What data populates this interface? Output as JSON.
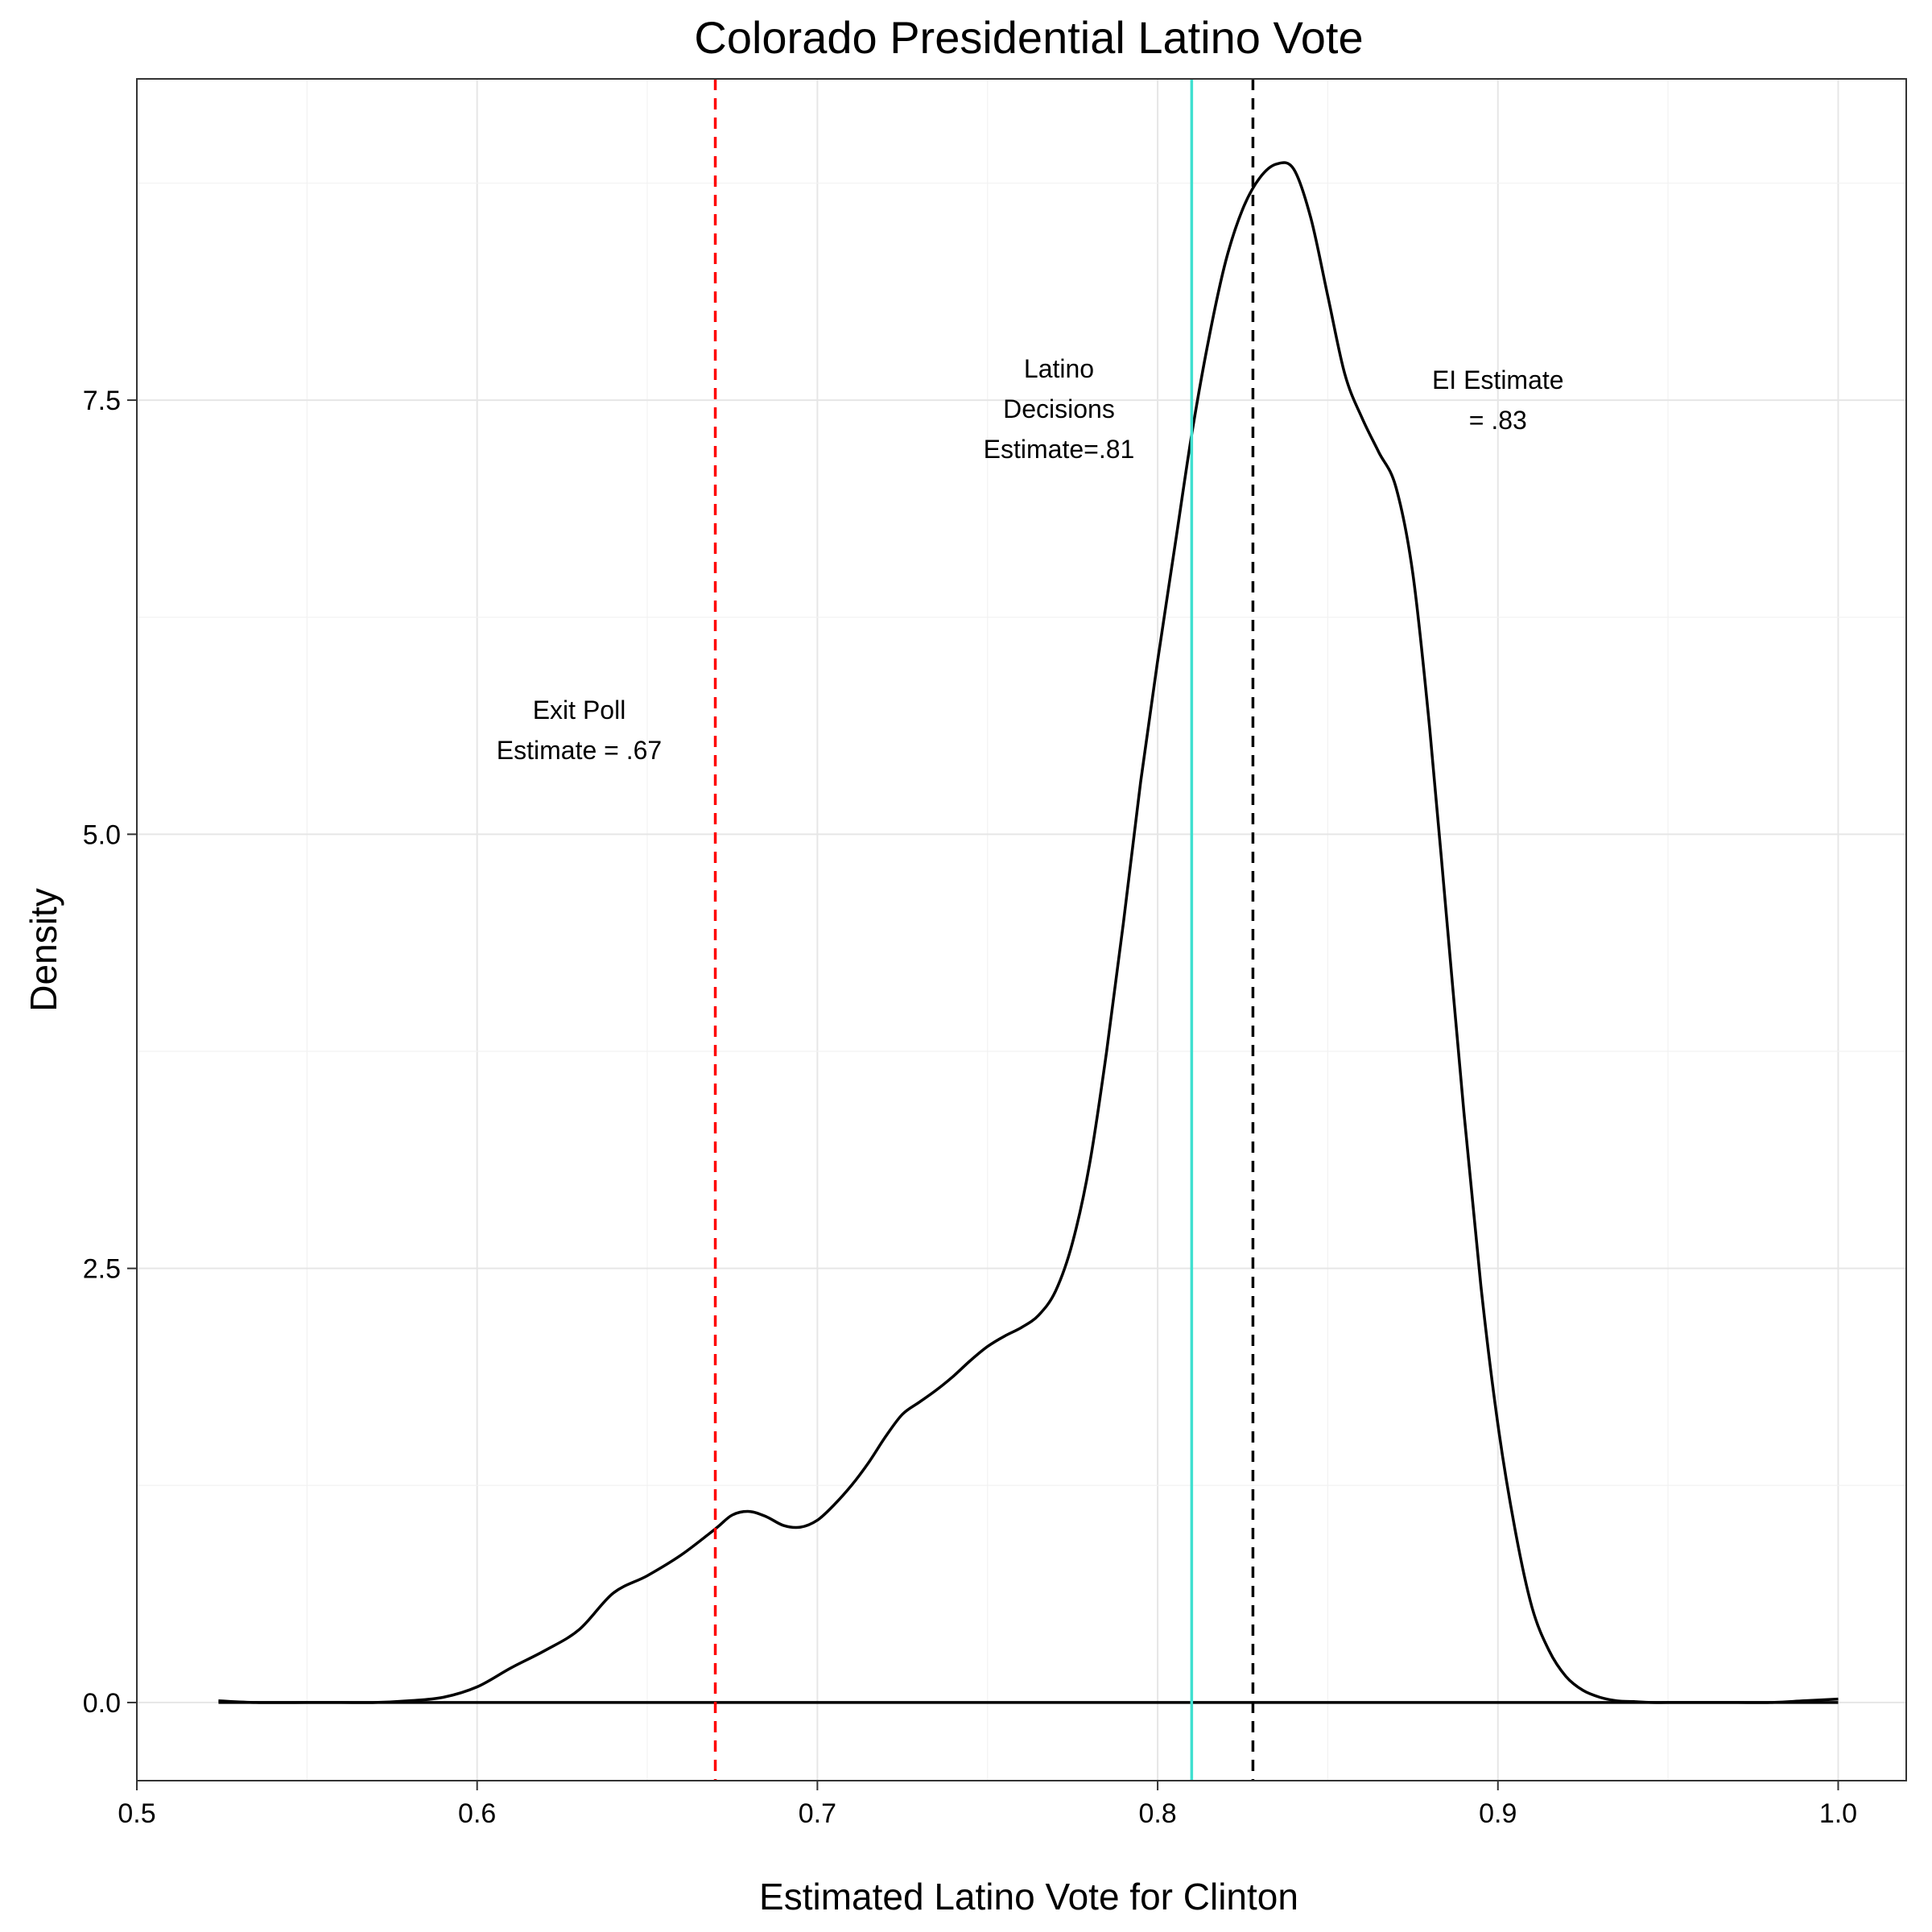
{
  "chart_data": {
    "type": "line",
    "title": "Colorado Presidential Latino Vote",
    "xlabel": "Estimated Latino Vote for Clinton",
    "ylabel": "Density",
    "xlim": [
      0.5,
      1.02
    ],
    "ylim": [
      -0.45,
      9.35
    ],
    "x_ticks": [
      0.5,
      0.6,
      0.7,
      0.8,
      0.9,
      1.0
    ],
    "x_tick_labels": [
      "0.5",
      "0.6",
      "0.7",
      "0.8",
      "0.9",
      "1.0"
    ],
    "y_ticks": [
      0.0,
      2.5,
      5.0,
      7.5
    ],
    "y_tick_labels": [
      "0.0",
      "2.5",
      "5.0",
      "7.5"
    ],
    "grid": true,
    "series": [
      {
        "color": "#000000",
        "x": [
          0.524,
          0.535,
          0.55,
          0.56,
          0.57,
          0.58,
          0.59,
          0.6,
          0.61,
          0.62,
          0.63,
          0.64,
          0.65,
          0.66,
          0.67,
          0.675,
          0.68,
          0.685,
          0.69,
          0.695,
          0.7,
          0.705,
          0.71,
          0.715,
          0.72,
          0.725,
          0.73,
          0.735,
          0.74,
          0.745,
          0.75,
          0.755,
          0.76,
          0.765,
          0.77,
          0.775,
          0.78,
          0.785,
          0.79,
          0.795,
          0.8,
          0.805,
          0.81,
          0.815,
          0.82,
          0.825,
          0.83,
          0.835,
          0.84,
          0.845,
          0.85,
          0.855,
          0.86,
          0.865,
          0.87,
          0.875,
          0.88,
          0.885,
          0.89,
          0.895,
          0.9,
          0.905,
          0.91,
          0.915,
          0.92,
          0.925,
          0.93,
          0.935,
          0.94,
          0.945,
          0.95,
          0.96,
          0.97,
          0.98,
          0.99,
          1.0
        ],
        "y": [
          0.01,
          0.0,
          0.0,
          0.0,
          0.0,
          0.01,
          0.03,
          0.09,
          0.2,
          0.3,
          0.42,
          0.63,
          0.73,
          0.85,
          1.0,
          1.08,
          1.1,
          1.07,
          1.02,
          1.01,
          1.05,
          1.14,
          1.25,
          1.38,
          1.53,
          1.66,
          1.73,
          1.8,
          1.88,
          1.97,
          2.05,
          2.11,
          2.16,
          2.23,
          2.37,
          2.65,
          3.1,
          3.75,
          4.5,
          5.3,
          6.0,
          6.65,
          7.3,
          7.85,
          8.3,
          8.6,
          8.78,
          8.86,
          8.83,
          8.55,
          8.1,
          7.65,
          7.4,
          7.2,
          7.0,
          6.5,
          5.6,
          4.5,
          3.4,
          2.4,
          1.6,
          1.0,
          0.55,
          0.3,
          0.15,
          0.07,
          0.03,
          0.01,
          0.005,
          0.0,
          0.0,
          0.0,
          0.0,
          0.0,
          0.01,
          0.02
        ]
      }
    ],
    "baseline": {
      "x": [
        0.524,
        1.0
      ],
      "y": [
        0.0,
        0.0
      ],
      "color": "#000000"
    },
    "vlines": [
      {
        "x": 0.67,
        "color": "#ff0000",
        "style": "dashed"
      },
      {
        "x": 0.81,
        "color": "#40e0d0",
        "style": "solid"
      },
      {
        "x": 0.828,
        "color": "#000000",
        "style": "dashed"
      }
    ],
    "annotations": [
      {
        "x": 0.63,
        "y": 5.6,
        "lines": [
          "Exit Poll",
          "Estimate = .67"
        ]
      },
      {
        "x": 0.771,
        "y": 7.45,
        "lines": [
          "Latino",
          "Decisions",
          "Estimate=.81"
        ]
      },
      {
        "x": 0.9,
        "y": 7.5,
        "lines": [
          "EI Estimate",
          "= .83"
        ]
      }
    ]
  }
}
